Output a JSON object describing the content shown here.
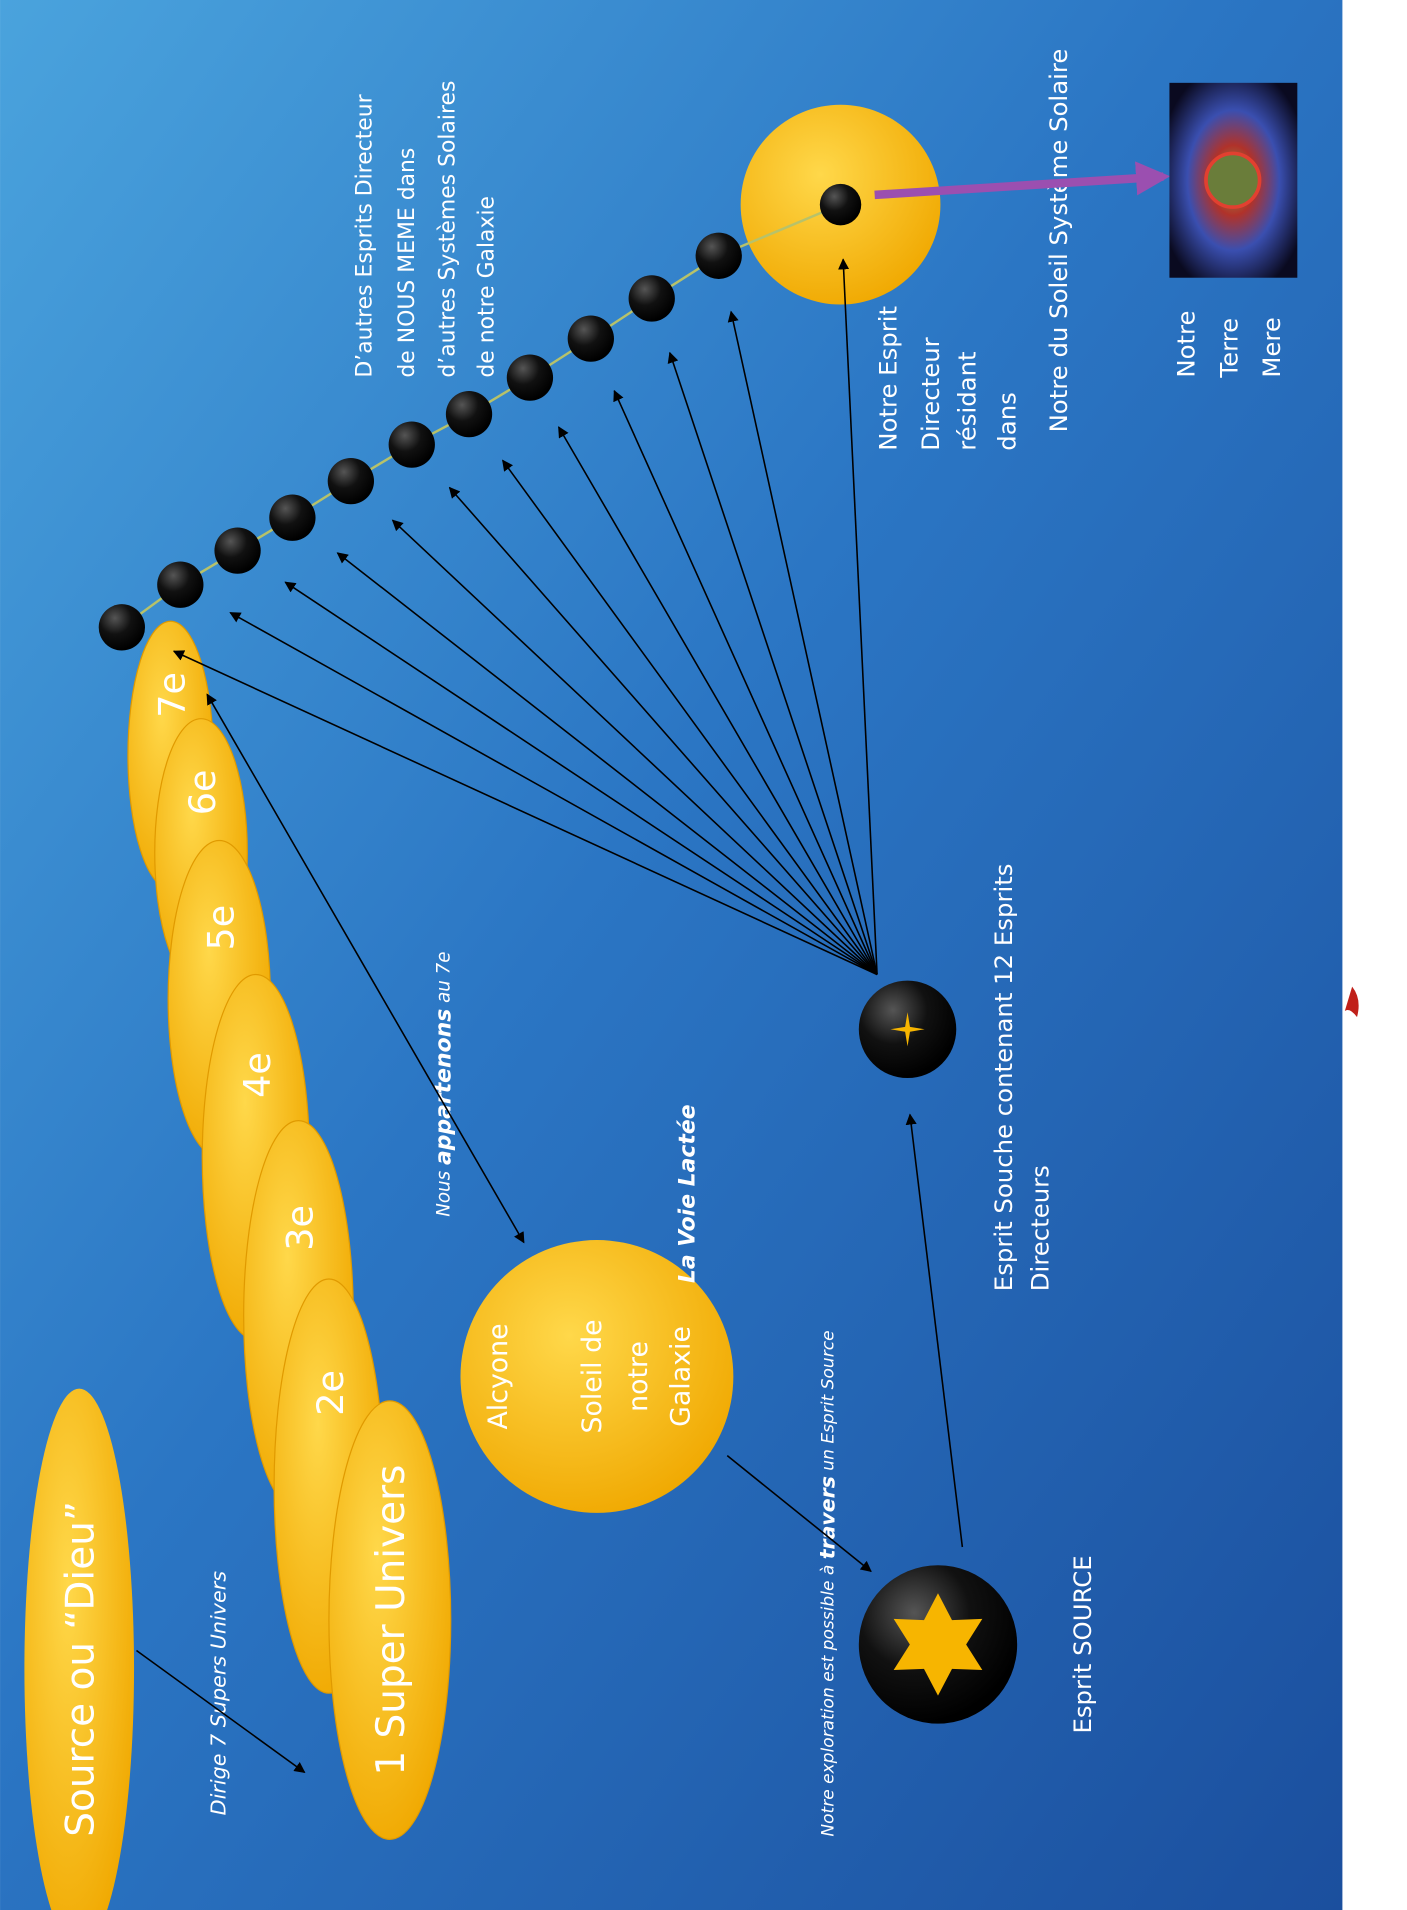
{
  "source": {
    "label": "Source ou “Dieu”",
    "note": "Dirige 7 Supers Univers"
  },
  "super_univers": [
    "1 Super Univers",
    "2e",
    "3e",
    "4e",
    "5e",
    "6e",
    "7e"
  ],
  "belonging_note": [
    "Nous ",
    "appartenons",
    " au 7e"
  ],
  "galaxy_sun": {
    "lines": [
      "Alcyone",
      "Soleil de",
      "notre",
      "Galaxie"
    ],
    "galaxy": "La Voie Lactée"
  },
  "exploration_note": [
    "Notre exploration  est possible à ",
    "travers",
    " un Esprit Source"
  ],
  "esprit_source": "Esprit SOURCE",
  "esprit_souche": [
    "Esprit Souche contenant 12 Esprits",
    "Directeurs"
  ],
  "other_directors": [
    "D’autres Esprits Directeur",
    "de NOUS MEME dans",
    "d’autres Systèmes Solaires",
    "de notre Galaxie"
  ],
  "our_director": [
    "Notre Esprit",
    "Directeur",
    "résidant",
    "dans"
  ],
  "sun_system": "Notre du Soleil  Système Solaire",
  "earth": [
    "Notre",
    "Terre",
    "Mere"
  ]
}
